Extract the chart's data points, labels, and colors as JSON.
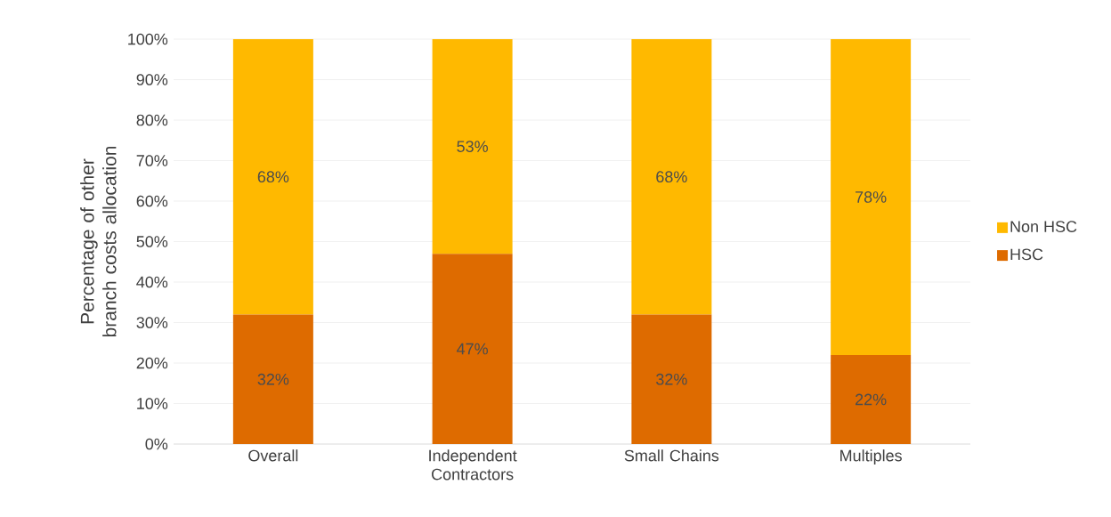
{
  "chart_data": {
    "type": "bar",
    "stacked": true,
    "ylabel": "Percentage of other branch costs allocation",
    "categories": [
      "Overall",
      "Independent Contractors",
      "Small Chains",
      "Multiples"
    ],
    "series": [
      {
        "name": "HSC",
        "color": "#de6b00",
        "values": [
          32,
          47,
          32,
          22
        ],
        "value_labels": [
          "32%",
          "47%",
          "32%",
          "22%"
        ]
      },
      {
        "name": "Non HSC",
        "color": "#ffb900",
        "values": [
          68,
          53,
          68,
          78
        ],
        "value_labels": [
          "68%",
          "53%",
          "68%",
          "78%"
        ]
      }
    ],
    "ylim": [
      0,
      100
    ],
    "yticks": [
      {
        "value": 0,
        "label": "0%"
      },
      {
        "value": 10,
        "label": "10%"
      },
      {
        "value": 20,
        "label": "20%"
      },
      {
        "value": 30,
        "label": "30%"
      },
      {
        "value": 40,
        "label": "40%"
      },
      {
        "value": 50,
        "label": "50%"
      },
      {
        "value": 60,
        "label": "60%"
      },
      {
        "value": 70,
        "label": "70%"
      },
      {
        "value": 80,
        "label": "80%"
      },
      {
        "value": 90,
        "label": "90%"
      },
      {
        "value": 100,
        "label": "100%"
      }
    ],
    "grid": "y",
    "legend": "right"
  }
}
